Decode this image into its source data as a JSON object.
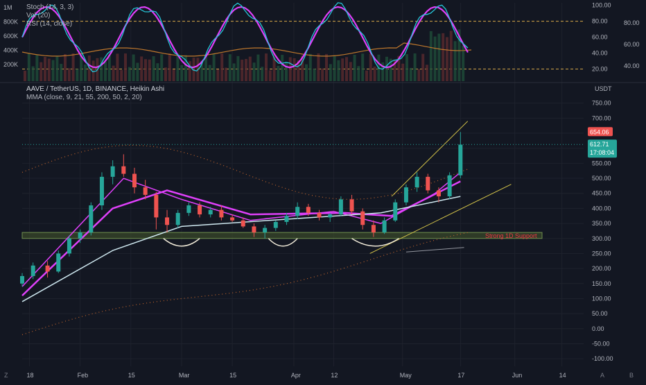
{
  "colors": {
    "background": "#131722",
    "grid": "#1e222d",
    "up": "#26a69a",
    "down": "#ef5350",
    "mma_fast": "#e040fb",
    "mma_slow": "#cfe8f0",
    "stoch_k": "#26c6da",
    "stoch_d": "#e040fb",
    "rsi": "#c0782c",
    "volume": "#2e5a3a",
    "support_fill": "#3a4a2a",
    "support_text": "#f23645",
    "price_badge": "#ef5350",
    "countdown_badge": "#26a69a",
    "trendline": "#d8c74a"
  },
  "indicator_pane": {
    "stoch_title": "Stoch (14, 3, 3)",
    "vol_title": "Vol (20)",
    "rsi_title": "RSI (14, close)",
    "vol_axis_ticks": [
      "1M",
      "800K",
      "600K",
      "400K",
      "200K"
    ],
    "osc_axis_ticks": [
      "100.00",
      "80.00",
      "60.00",
      "40.00",
      "20.00"
    ],
    "rsi_axis_ticks": [
      "80.00",
      "60.00",
      "40.00"
    ]
  },
  "main_pane": {
    "symbol_title": "AAVE / TetherUS, 1D, BINANCE, Heikin Ashi",
    "indicator_title": "MMA (close, 9, 21, 55, 200, 50, 2, 20)",
    "currency": "USDT",
    "price_axis_ticks": [
      "750.00",
      "700.00",
      "650.00",
      "600.00",
      "550.00",
      "500.00",
      "450.00",
      "400.00",
      "350.00",
      "300.00",
      "250.00",
      "200.00",
      "150.00",
      "100.00",
      "50.00",
      "0.00",
      "-50.00",
      "-100.00"
    ],
    "high_label": "654.06",
    "last_price": "612.71",
    "countdown": "17:08:04",
    "support_label": "Strong 1D Support"
  },
  "time_axis": {
    "labels": [
      "18",
      "Feb",
      "15",
      "Mar",
      "15",
      "Apr",
      "12",
      "May",
      "17",
      "Jun",
      "14"
    ],
    "zoom_buttons": [
      "Z",
      "A",
      "B"
    ]
  },
  "chart_data": {
    "type": "candlestick",
    "title": "AAVE / TetherUS, 1D, BINANCE, Heikin Ashi",
    "xlabel": "",
    "ylabel": "USDT",
    "x_range": [
      "2021-01-16",
      "2021-06-20"
    ],
    "ylim": [
      -125,
      770
    ],
    "candles": [
      {
        "date": "2021-01-16",
        "open": 150,
        "high": 185,
        "low": 140,
        "close": 175
      },
      {
        "date": "2021-01-19",
        "open": 175,
        "high": 220,
        "low": 165,
        "close": 210
      },
      {
        "date": "2021-01-23",
        "open": 210,
        "high": 225,
        "low": 170,
        "close": 190
      },
      {
        "date": "2021-01-26",
        "open": 190,
        "high": 260,
        "low": 185,
        "close": 250
      },
      {
        "date": "2021-01-29",
        "open": 250,
        "high": 310,
        "low": 240,
        "close": 300
      },
      {
        "date": "2021-02-01",
        "open": 300,
        "high": 330,
        "low": 285,
        "close": 320
      },
      {
        "date": "2021-02-04",
        "open": 320,
        "high": 420,
        "low": 310,
        "close": 410
      },
      {
        "date": "2021-02-07",
        "open": 410,
        "high": 520,
        "low": 395,
        "close": 505
      },
      {
        "date": "2021-02-10",
        "open": 505,
        "high": 560,
        "low": 480,
        "close": 540
      },
      {
        "date": "2021-02-13",
        "open": 540,
        "high": 580,
        "low": 505,
        "close": 515
      },
      {
        "date": "2021-02-16",
        "open": 515,
        "high": 535,
        "low": 450,
        "close": 470
      },
      {
        "date": "2021-02-19",
        "open": 470,
        "high": 495,
        "low": 430,
        "close": 445
      },
      {
        "date": "2021-02-22",
        "open": 445,
        "high": 455,
        "low": 330,
        "close": 370
      },
      {
        "date": "2021-02-25",
        "open": 370,
        "high": 395,
        "low": 320,
        "close": 345
      },
      {
        "date": "2021-02-28",
        "open": 345,
        "high": 395,
        "low": 335,
        "close": 385
      },
      {
        "date": "2021-03-03",
        "open": 385,
        "high": 420,
        "low": 375,
        "close": 410
      },
      {
        "date": "2021-03-06",
        "open": 410,
        "high": 420,
        "low": 370,
        "close": 380
      },
      {
        "date": "2021-03-09",
        "open": 380,
        "high": 405,
        "low": 370,
        "close": 395
      },
      {
        "date": "2021-03-12",
        "open": 395,
        "high": 410,
        "low": 360,
        "close": 370
      },
      {
        "date": "2021-03-15",
        "open": 370,
        "high": 380,
        "low": 355,
        "close": 360
      },
      {
        "date": "2021-03-18",
        "open": 360,
        "high": 370,
        "low": 335,
        "close": 340
      },
      {
        "date": "2021-03-21",
        "open": 340,
        "high": 350,
        "low": 305,
        "close": 320
      },
      {
        "date": "2021-03-24",
        "open": 320,
        "high": 345,
        "low": 300,
        "close": 335
      },
      {
        "date": "2021-03-27",
        "open": 335,
        "high": 360,
        "low": 325,
        "close": 355
      },
      {
        "date": "2021-03-30",
        "open": 355,
        "high": 385,
        "low": 345,
        "close": 375
      },
      {
        "date": "2021-04-02",
        "open": 375,
        "high": 420,
        "low": 365,
        "close": 405
      },
      {
        "date": "2021-04-05",
        "open": 405,
        "high": 415,
        "low": 375,
        "close": 385
      },
      {
        "date": "2021-04-08",
        "open": 385,
        "high": 395,
        "low": 360,
        "close": 370
      },
      {
        "date": "2021-04-11",
        "open": 370,
        "high": 385,
        "low": 355,
        "close": 380
      },
      {
        "date": "2021-04-14",
        "open": 380,
        "high": 440,
        "low": 375,
        "close": 430
      },
      {
        "date": "2021-04-17",
        "open": 430,
        "high": 445,
        "low": 380,
        "close": 390
      },
      {
        "date": "2021-04-20",
        "open": 390,
        "high": 400,
        "low": 330,
        "close": 345
      },
      {
        "date": "2021-04-23",
        "open": 345,
        "high": 360,
        "low": 305,
        "close": 320
      },
      {
        "date": "2021-04-26",
        "open": 320,
        "high": 370,
        "low": 315,
        "close": 360
      },
      {
        "date": "2021-04-29",
        "open": 360,
        "high": 430,
        "low": 355,
        "close": 420
      },
      {
        "date": "2021-05-02",
        "open": 420,
        "high": 480,
        "low": 410,
        "close": 470
      },
      {
        "date": "2021-05-05",
        "open": 470,
        "high": 520,
        "low": 455,
        "close": 505
      },
      {
        "date": "2021-05-08",
        "open": 505,
        "high": 515,
        "low": 450,
        "close": 460
      },
      {
        "date": "2021-05-11",
        "open": 460,
        "high": 470,
        "low": 420,
        "close": 440
      },
      {
        "date": "2021-05-14",
        "open": 440,
        "high": 520,
        "low": 430,
        "close": 510
      },
      {
        "date": "2021-05-17",
        "open": 510,
        "high": 654,
        "low": 500,
        "close": 612
      }
    ],
    "mma_lines": [
      {
        "name": "MMA 9",
        "x": [
          "2021-01-16",
          "2021-02-13",
          "2021-03-01",
          "2021-03-20",
          "2021-04-12",
          "2021-04-25",
          "2021-05-10",
          "2021-05-17"
        ],
        "y": [
          140,
          500,
          430,
          360,
          390,
          350,
          450,
          520
        ]
      },
      {
        "name": "MMA 21",
        "x": [
          "2021-01-16",
          "2021-02-10",
          "2021-02-25",
          "2021-03-20",
          "2021-04-15",
          "2021-04-28",
          "2021-05-17"
        ],
        "y": [
          110,
          400,
          460,
          380,
          385,
          375,
          490
        ]
      },
      {
        "name": "MMA 55",
        "x": [
          "2021-01-16",
          "2021-02-10",
          "2021-03-01",
          "2021-03-25",
          "2021-04-25",
          "2021-05-17"
        ],
        "y": [
          90,
          260,
          340,
          360,
          385,
          440
        ]
      }
    ],
    "support_zone": {
      "low": 300,
      "high": 320,
      "label": "Strong 1D Support"
    },
    "annotations": [
      "654.06",
      "612.71",
      "17:08:04"
    ]
  }
}
